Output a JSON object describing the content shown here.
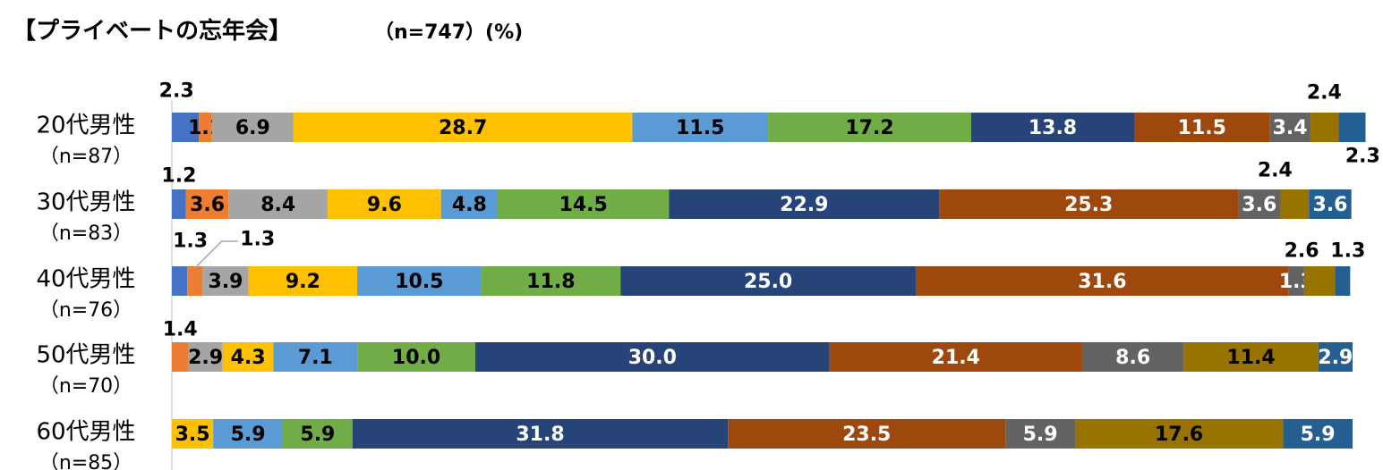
{
  "title": "【プライベートの忘年会】",
  "subtitle": "（n=747）(%)",
  "colors": [
    "#4472C4",
    "#ED7D31",
    "#A5A5A5",
    "#FFC000",
    "#5B9BD5",
    "#70AD47",
    "#264478",
    "#9E480E",
    "#636363",
    "#997300",
    "#255E91"
  ],
  "chart_data": {
    "type": "bar",
    "orientation": "horizontal",
    "stacked": true,
    "xlim": [
      0,
      100
    ],
    "legend": "none",
    "grid": false,
    "categories": [
      {
        "name": "20代男性",
        "n": "（n=87）"
      },
      {
        "name": "30代男性",
        "n": "（n=83）"
      },
      {
        "name": "40代男性",
        "n": "（n=76）"
      },
      {
        "name": "50代男性",
        "n": "（n=70）"
      },
      {
        "name": "60代男性",
        "n": "（n=85）"
      }
    ],
    "rows": [
      [
        2.3,
        1.1,
        6.9,
        28.7,
        11.5,
        17.2,
        13.8,
        11.5,
        3.4,
        2.4,
        2.3
      ],
      [
        1.2,
        3.6,
        8.4,
        9.6,
        4.8,
        14.5,
        22.9,
        25.3,
        3.6,
        2.4,
        3.6
      ],
      [
        1.3,
        1.3,
        3.9,
        9.2,
        10.5,
        11.8,
        25.0,
        31.6,
        1.3,
        2.6,
        1.3
      ],
      [
        0,
        1.4,
        2.9,
        4.3,
        7.1,
        10.0,
        30.0,
        21.4,
        8.6,
        11.4,
        2.9
      ],
      [
        0,
        0,
        0,
        3.5,
        5.9,
        5.9,
        31.8,
        23.5,
        5.9,
        17.6,
        5.9
      ]
    ],
    "labels": [
      [
        "2.3",
        "1.1",
        "6.9",
        "28.7",
        "11.5",
        "17.2",
        "13.8",
        "11.5",
        "3.4",
        "2.4",
        "2.3"
      ],
      [
        "1.2",
        "3.6",
        "8.4",
        "9.6",
        "4.8",
        "14.5",
        "22.9",
        "25.3",
        "3.6",
        "2.4",
        "3.6"
      ],
      [
        "1.3",
        "1.3",
        "3.9",
        "9.2",
        "10.5",
        "11.8",
        "25.0",
        "31.6",
        "1.3",
        "2.6",
        "1.3"
      ],
      [
        "",
        "1.4",
        "2.9",
        "4.3",
        "7.1",
        "10.0",
        "30.0",
        "21.4",
        "8.6",
        "11.4",
        "2.9"
      ],
      [
        "",
        "",
        "",
        "3.5",
        "5.9",
        "5.9",
        "31.8",
        "23.5",
        "5.9",
        "17.6",
        "5.9"
      ]
    ]
  }
}
